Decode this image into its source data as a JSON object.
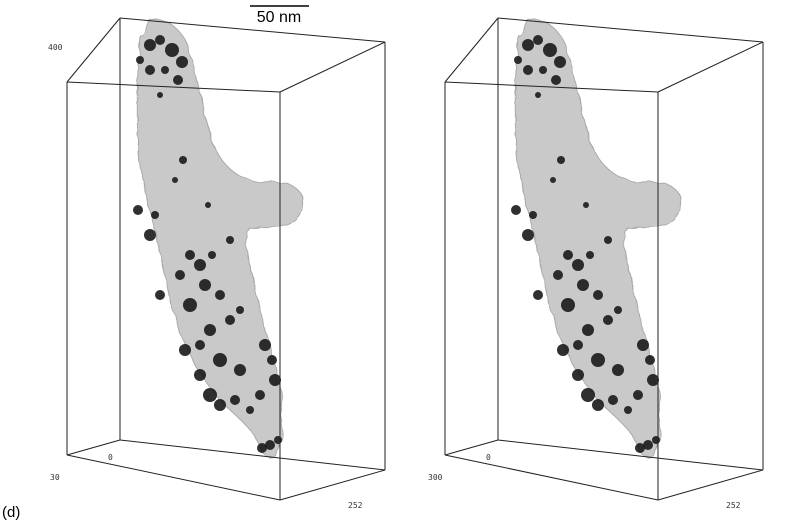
{
  "scale_bar": "50 nm",
  "panel_label": "(d)",
  "left_panel": {
    "labels": [
      "400",
      "0",
      "30",
      "252"
    ]
  },
  "right_panel": {
    "labels": [
      "0",
      "300",
      "252"
    ]
  }
}
